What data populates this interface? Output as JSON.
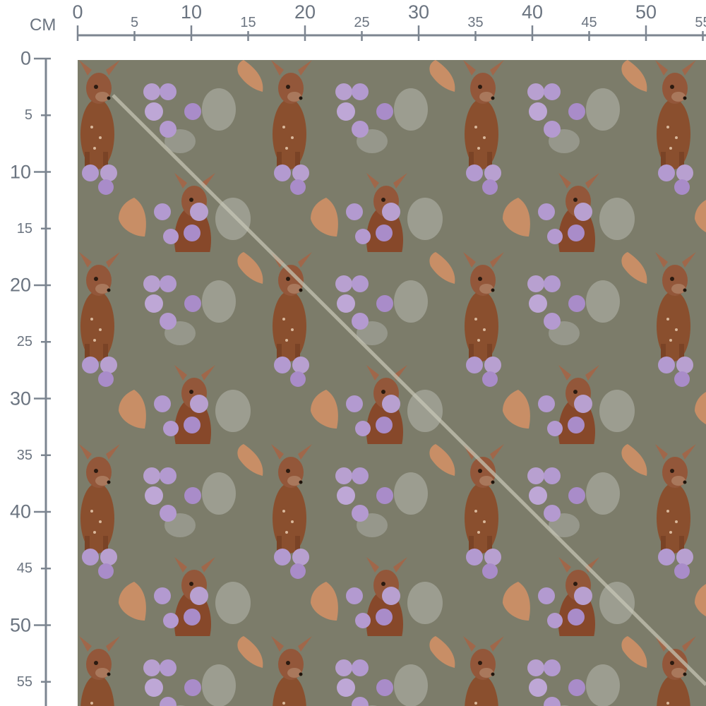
{
  "unit_label": "CM",
  "top_ruler": {
    "major_labels": [
      "0",
      "10",
      "20",
      "30",
      "40",
      "50"
    ],
    "minor_labels": [
      "5",
      "15",
      "25",
      "35",
      "45",
      "55"
    ]
  },
  "left_ruler": {
    "major_labels": [
      "0",
      "10",
      "20",
      "30",
      "40",
      "50"
    ],
    "minor_labels": [
      "5",
      "15",
      "25",
      "35",
      "45",
      "55"
    ]
  },
  "fabric": {
    "background_color": "#7c7c6a",
    "motifs": [
      "deer-fawn",
      "purple-berries",
      "oak-leaf",
      "grey-leaves"
    ]
  }
}
